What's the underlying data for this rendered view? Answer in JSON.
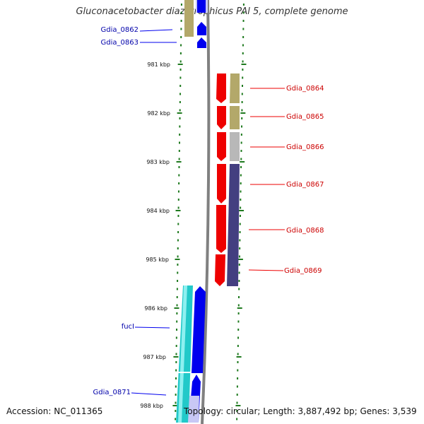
{
  "title": "Gluconacetobacter diazotrophicus PAl 5, complete genome",
  "accession": "Accession: NC_011365",
  "summary": "Topology: circular; Length: 3,887,492 bp; Genes: 3,539",
  "colors": {
    "backbone": "#808080",
    "ruler": "#1f7a1f",
    "forward_gene": "#0000ee",
    "reverse_gene": "#ee0000",
    "forward_label": "#0000aa",
    "reverse_label": "#cc0000",
    "cds_tan": "#b3a86a",
    "cds_gray": "#b8b8b8",
    "cds_purple": "#433f80",
    "cds_cyan": "#22c9c9",
    "cds_lavender": "#c8c8f5"
  },
  "ticks": [
    "981 kbp",
    "982 kbp",
    "983 kbp",
    "984 kbp",
    "985 kbp",
    "986 kbp",
    "987 kbp",
    "988 kbp"
  ],
  "genes": [
    {
      "name": "Gdia_0862",
      "strand": "forward"
    },
    {
      "name": "Gdia_0863",
      "strand": "forward"
    },
    {
      "name": "Gdia_0864",
      "strand": "reverse"
    },
    {
      "name": "Gdia_0865",
      "strand": "reverse"
    },
    {
      "name": "Gdia_0866",
      "strand": "reverse"
    },
    {
      "name": "Gdia_0867",
      "strand": "reverse"
    },
    {
      "name": "Gdia_0868",
      "strand": "reverse"
    },
    {
      "name": "Gdia_0869",
      "strand": "reverse"
    },
    {
      "name": "fucI",
      "strand": "forward"
    },
    {
      "name": "Gdia_0871",
      "strand": "forward"
    }
  ]
}
